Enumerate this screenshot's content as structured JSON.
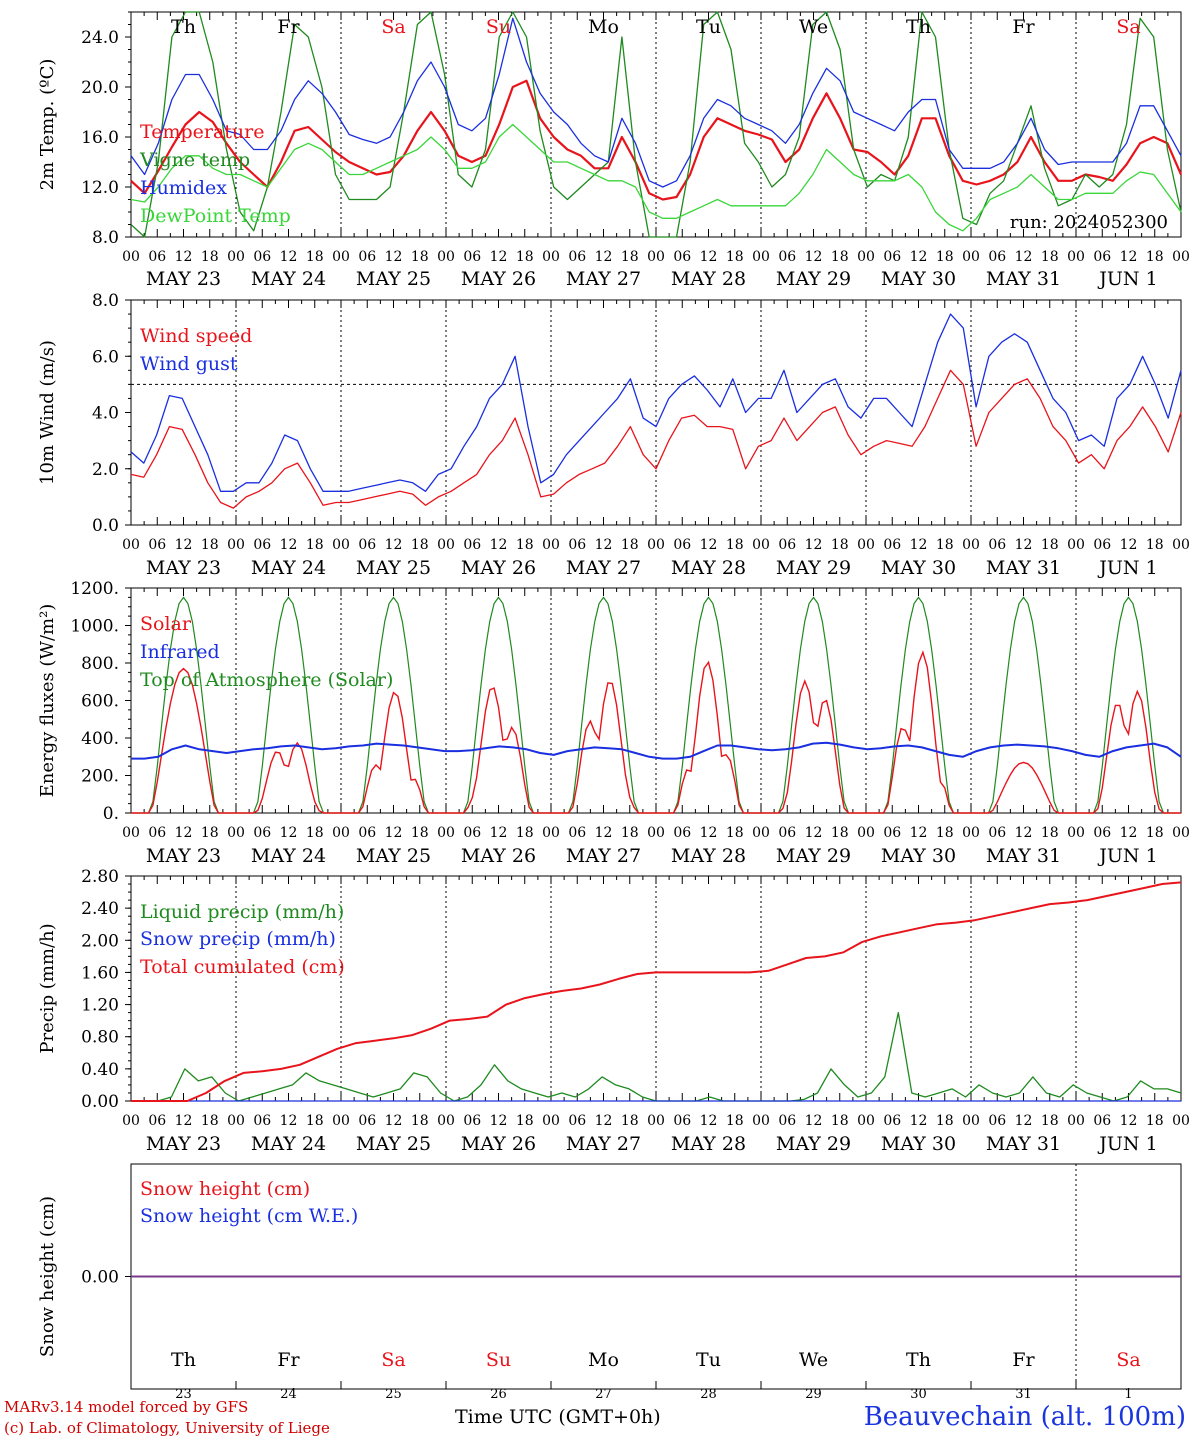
{
  "footer": {
    "model": "MARv3.14 model forced by GFS",
    "credit": "(c) Lab. of Climatology, University of Liege",
    "axis_title": "Time UTC (GMT+0h)",
    "station": "Beauvechain (alt. 100m)"
  },
  "colors": {
    "red": "#e8141c",
    "green": "#1f8a1f",
    "lightgreen": "#39d639",
    "blue": "#1a2fe0",
    "purple": "#7a3a8a"
  },
  "chart_data": [
    {
      "type": "line",
      "ylabel": "2m Temp. (ºC)",
      "ylim": [
        8,
        26
      ],
      "yticks": [
        "8.0",
        "12.0",
        "16.0",
        "20.0",
        "24.0"
      ],
      "ytick_values": [
        8,
        12,
        16,
        20,
        24
      ],
      "annotation": "run: 2024052300",
      "weekdays": [
        "Th",
        "Fr",
        "Sa",
        "Su",
        "Mo",
        "Tu",
        "We",
        "Th",
        "Fr",
        "Sa"
      ],
      "weekend_flags": [
        false,
        false,
        true,
        true,
        false,
        false,
        false,
        false,
        false,
        true
      ],
      "date_labels": [
        "MAY 23",
        "MAY 24",
        "MAY 25",
        "MAY 26",
        "MAY 27",
        "MAY 28",
        "MAY 29",
        "MAY 30",
        "MAY 31",
        "JUN  1"
      ],
      "hour_labels": [
        "00",
        "06",
        "12",
        "18"
      ],
      "series": [
        {
          "name": "Temperature",
          "color": "#e8141c",
          "values": [
            12.5,
            11.5,
            13.3,
            15.2,
            17.0,
            18.0,
            17.2,
            15.5,
            14.0,
            13.0,
            12.0,
            14.0,
            16.5,
            16.8,
            15.8,
            14.8,
            14.0,
            13.5,
            13.0,
            13.2,
            14.5,
            16.5,
            18.0,
            16.5,
            14.5,
            14.0,
            14.5,
            17.0,
            20.0,
            20.5,
            17.5,
            16.0,
            15.0,
            14.5,
            13.5,
            13.5,
            16.0,
            14.0,
            11.5,
            11.0,
            11.2,
            13.0,
            16.0,
            17.5,
            17.0,
            16.5,
            16.2,
            15.8,
            14.0,
            15.0,
            17.5,
            19.5,
            17.5,
            15.0,
            14.8,
            14.0,
            13.0,
            14.5,
            17.5,
            17.5,
            14.5,
            12.5,
            12.2,
            12.5,
            13.0,
            14.0,
            16.0,
            14.0,
            12.5,
            12.5,
            13.0,
            12.8,
            12.5,
            13.8,
            15.5,
            16.0,
            15.5,
            13.0
          ]
        },
        {
          "name": "Vigne temp",
          "color": "#1f8a1f",
          "values": [
            9.0,
            8.0,
            14.0,
            24.0,
            26.5,
            26.5,
            22.0,
            15.0,
            10.0,
            8.5,
            12.0,
            18.0,
            25.0,
            24.0,
            20.0,
            13.0,
            11.0,
            11.0,
            11.0,
            12.0,
            18.0,
            25.0,
            26.0,
            21.0,
            13.0,
            12.0,
            15.0,
            24.0,
            27.0,
            24.0,
            16.5,
            12.0,
            11.0,
            12.0,
            13.0,
            14.0,
            24.0,
            14.0,
            8.0,
            7.5,
            8.0,
            14.0,
            25.0,
            26.0,
            23.0,
            15.5,
            14.0,
            12.0,
            13.0,
            16.0,
            25.0,
            26.5,
            23.0,
            15.0,
            12.0,
            13.0,
            12.5,
            16.0,
            26.0,
            24.0,
            15.0,
            9.5,
            9.0,
            11.5,
            12.5,
            15.5,
            18.5,
            13.5,
            10.5,
            11.0,
            13.0,
            12.0,
            13.0,
            17.0,
            25.5,
            24.0,
            15.0,
            10.0
          ]
        },
        {
          "name": "Humidex",
          "color": "#1a2fe0",
          "values": [
            14.5,
            13.0,
            15.5,
            19.0,
            21.0,
            21.0,
            19.0,
            16.5,
            16.2,
            15.0,
            15.0,
            16.5,
            19.0,
            20.5,
            19.5,
            18.0,
            16.2,
            15.8,
            15.5,
            16.0,
            18.0,
            20.5,
            22.0,
            20.0,
            17.0,
            16.5,
            17.5,
            21.0,
            25.5,
            22.0,
            19.5,
            18.0,
            17.0,
            15.5,
            14.5,
            14.0,
            17.5,
            15.5,
            12.5,
            12.0,
            12.5,
            14.5,
            17.5,
            19.0,
            18.5,
            17.5,
            17.0,
            16.5,
            15.5,
            17.0,
            19.5,
            21.5,
            20.5,
            18.0,
            17.5,
            17.0,
            16.5,
            18.0,
            19.0,
            19.0,
            15.0,
            13.5,
            13.5,
            13.5,
            14.0,
            15.5,
            17.5,
            15.0,
            13.8,
            14.0,
            14.0,
            14.0,
            14.0,
            15.5,
            18.5,
            18.5,
            16.5,
            14.5
          ]
        },
        {
          "name": "DewPoint Temp",
          "color": "#39d639",
          "values": [
            11.0,
            10.8,
            12.0,
            13.5,
            14.5,
            14.5,
            13.5,
            13.0,
            13.0,
            12.5,
            12.0,
            13.5,
            15.0,
            15.5,
            15.0,
            14.0,
            13.0,
            13.0,
            13.5,
            14.0,
            14.5,
            15.0,
            16.0,
            15.0,
            13.5,
            13.5,
            14.0,
            16.0,
            17.0,
            16.0,
            15.0,
            14.0,
            14.0,
            13.5,
            13.0,
            12.5,
            12.5,
            12.0,
            10.0,
            9.5,
            9.5,
            10.0,
            10.5,
            11.0,
            10.5,
            10.5,
            10.5,
            10.5,
            10.5,
            11.5,
            13.0,
            15.0,
            14.0,
            13.0,
            12.5,
            12.5,
            12.5,
            13.0,
            12.0,
            10.0,
            9.0,
            8.5,
            9.5,
            11.0,
            11.5,
            12.0,
            13.0,
            12.0,
            11.0,
            11.0,
            11.5,
            11.5,
            11.5,
            12.5,
            13.2,
            13.0,
            11.5,
            10.0
          ]
        }
      ]
    },
    {
      "type": "line",
      "ylabel": "10m Wind (m/s)",
      "ylim": [
        0,
        8
      ],
      "yticks": [
        "0.0",
        "2.0",
        "4.0",
        "6.0",
        "8.0"
      ],
      "ytick_values": [
        0,
        2,
        4,
        6,
        8
      ],
      "reference_line": 5,
      "date_labels": [
        "MAY 23",
        "MAY 24",
        "MAY 25",
        "MAY 26",
        "MAY 27",
        "MAY 28",
        "MAY 29",
        "MAY 30",
        "MAY 31",
        "JUN  1"
      ],
      "hour_labels": [
        "00",
        "06",
        "12",
        "18"
      ],
      "series": [
        {
          "name": "Wind speed",
          "color": "#e8141c",
          "values": [
            1.8,
            1.7,
            2.5,
            3.5,
            3.4,
            2.5,
            1.5,
            0.8,
            0.6,
            1.0,
            1.2,
            1.5,
            2.0,
            2.2,
            1.5,
            0.7,
            0.8,
            0.8,
            0.9,
            1.0,
            1.1,
            1.2,
            1.1,
            0.7,
            1.0,
            1.2,
            1.5,
            1.8,
            2.5,
            3.0,
            3.8,
            2.5,
            1.0,
            1.1,
            1.5,
            1.8,
            2.0,
            2.2,
            2.8,
            3.5,
            2.5,
            2.0,
            3.0,
            3.8,
            3.9,
            3.5,
            3.5,
            3.4,
            2.0,
            2.8,
            3.0,
            3.8,
            3.0,
            3.5,
            4.0,
            4.2,
            3.2,
            2.5,
            2.8,
            3.0,
            2.9,
            2.8,
            3.5,
            4.5,
            5.5,
            5.0,
            2.8,
            4.0,
            4.5,
            5.0,
            5.2,
            4.5,
            3.5,
            3.0,
            2.2,
            2.5,
            2.0,
            3.0,
            3.5,
            4.2,
            3.5,
            2.6,
            4.0
          ]
        },
        {
          "name": "Wind gust",
          "color": "#1a2fe0",
          "values": [
            2.6,
            2.2,
            3.2,
            4.6,
            4.5,
            3.5,
            2.5,
            1.2,
            1.2,
            1.5,
            1.5,
            2.2,
            3.2,
            3.0,
            2.0,
            1.2,
            1.2,
            1.2,
            1.3,
            1.4,
            1.5,
            1.6,
            1.5,
            1.2,
            1.8,
            2.0,
            2.8,
            3.5,
            4.5,
            5.0,
            6.0,
            3.5,
            1.5,
            1.8,
            2.5,
            3.0,
            3.5,
            4.0,
            4.5,
            5.2,
            3.8,
            3.5,
            4.5,
            5.0,
            5.3,
            4.8,
            4.2,
            5.2,
            4.0,
            4.5,
            4.5,
            5.5,
            4.0,
            4.5,
            5.0,
            5.2,
            4.2,
            3.8,
            4.5,
            4.5,
            4.0,
            3.5,
            5.0,
            6.5,
            7.5,
            7.0,
            4.2,
            6.0,
            6.5,
            6.8,
            6.5,
            5.5,
            4.5,
            4.0,
            3.0,
            3.2,
            2.8,
            4.5,
            5.0,
            6.0,
            5.0,
            3.8,
            5.5
          ]
        }
      ]
    },
    {
      "type": "line",
      "ylabel": "Energy fluxes (W/m²)",
      "ylim": [
        0,
        1200
      ],
      "yticks": [
        "0.",
        "200.",
        "400.",
        "600.",
        "800.",
        "1000.",
        "1200."
      ],
      "ytick_values": [
        0,
        200,
        400,
        600,
        800,
        1000,
        1200
      ],
      "date_labels": [
        "MAY 23",
        "MAY 24",
        "MAY 25",
        "MAY 26",
        "MAY 27",
        "MAY 28",
        "MAY 29",
        "MAY 30",
        "MAY 31",
        "JUN  1"
      ],
      "hour_labels": [
        "00",
        "06",
        "12",
        "18"
      ],
      "series": [
        {
          "name": "Solar",
          "color": "#e8141c",
          "daily_peaks": [
            770,
            450,
            650,
            740,
            780,
            810,
            840,
            890,
            270,
            790
          ]
        },
        {
          "name": "Infrared",
          "color": "#1a2fe0",
          "values": [
            290,
            290,
            300,
            340,
            360,
            340,
            330,
            320,
            330,
            340,
            345,
            355,
            360,
            350,
            340,
            345,
            355,
            360,
            370,
            365,
            360,
            350,
            340,
            330,
            330,
            335,
            345,
            355,
            350,
            340,
            320,
            310,
            330,
            340,
            350,
            345,
            340,
            320,
            300,
            290,
            290,
            300,
            330,
            360,
            360,
            350,
            340,
            335,
            340,
            350,
            370,
            375,
            365,
            350,
            340,
            345,
            355,
            360,
            350,
            330,
            310,
            300,
            330,
            350,
            360,
            365,
            360,
            355,
            345,
            330,
            310,
            300,
            330,
            350,
            360,
            370,
            350,
            300
          ]
        },
        {
          "name": "Top of Atmosphere (Solar)",
          "color": "#1f8a1f",
          "daily_peak": 1150
        }
      ]
    },
    {
      "type": "line",
      "ylabel": "Precip (mm/h)",
      "ylim": [
        0,
        2.8
      ],
      "yticks": [
        "0.00",
        "0.40",
        "0.80",
        "1.20",
        "1.60",
        "2.00",
        "2.40",
        "2.80"
      ],
      "ytick_values": [
        0,
        0.4,
        0.8,
        1.2,
        1.6,
        2.0,
        2.4,
        2.8
      ],
      "date_labels": [
        "MAY 23",
        "MAY 24",
        "MAY 25",
        "MAY 26",
        "MAY 27",
        "MAY 28",
        "MAY 29",
        "MAY 30",
        "MAY 31",
        "JUN  1"
      ],
      "hour_labels": [
        "00",
        "06",
        "12",
        "18"
      ],
      "series": [
        {
          "name": "Liquid precip (mm/h)",
          "color": "#1f8a1f",
          "values": [
            0,
            0,
            0,
            0.05,
            0.4,
            0.25,
            0.3,
            0.1,
            0,
            0.05,
            0.1,
            0.15,
            0.2,
            0.35,
            0.25,
            0.2,
            0.15,
            0.1,
            0.05,
            0.1,
            0.15,
            0.35,
            0.3,
            0.1,
            0,
            0.05,
            0.2,
            0.45,
            0.25,
            0.15,
            0.1,
            0.05,
            0.1,
            0.05,
            0.15,
            0.3,
            0.2,
            0.15,
            0.05,
            0,
            0,
            0,
            0,
            0.05,
            0,
            0,
            0,
            0,
            0,
            0,
            0.02,
            0.1,
            0.4,
            0.2,
            0.05,
            0.1,
            0.3,
            1.1,
            0.1,
            0.05,
            0.1,
            0.15,
            0.05,
            0.2,
            0.1,
            0.05,
            0.1,
            0.3,
            0.1,
            0.05,
            0.2,
            0.1,
            0.05,
            0,
            0.05,
            0.25,
            0.15,
            0.15,
            0.1
          ]
        },
        {
          "name": "Snow precip (mm/h)",
          "color": "#1a2fe0",
          "values": [
            0,
            0
          ]
        },
        {
          "name": "Total cumulated (cm)",
          "color": "#e8141c",
          "values": [
            0,
            0,
            0,
            0,
            0.1,
            0.25,
            0.35,
            0.37,
            0.4,
            0.45,
            0.55,
            0.65,
            0.72,
            0.75,
            0.78,
            0.82,
            0.9,
            1.0,
            1.02,
            1.05,
            1.2,
            1.28,
            1.33,
            1.37,
            1.4,
            1.45,
            1.52,
            1.58,
            1.6,
            1.6,
            1.6,
            1.6,
            1.6,
            1.6,
            1.62,
            1.7,
            1.78,
            1.8,
            1.85,
            1.98,
            2.05,
            2.1,
            2.15,
            2.2,
            2.22,
            2.25,
            2.3,
            2.35,
            2.4,
            2.45,
            2.47,
            2.5,
            2.55,
            2.6,
            2.65,
            2.7,
            2.72
          ]
        }
      ]
    },
    {
      "type": "line",
      "ylabel": "Snow height (cm)",
      "ylim": [
        -1,
        1
      ],
      "yticks": [
        "0.00"
      ],
      "ytick_values": [
        0
      ],
      "weekdays": [
        "Th",
        "Fr",
        "Sa",
        "Su",
        "Mo",
        "Tu",
        "We",
        "Th",
        "Fr",
        "Sa"
      ],
      "weekend_flags": [
        false,
        false,
        true,
        true,
        false,
        false,
        false,
        false,
        false,
        true
      ],
      "day_numbers": [
        "23",
        "24",
        "25",
        "26",
        "27",
        "28",
        "29",
        "30",
        "31",
        "1"
      ],
      "series": [
        {
          "name": "Snow height (cm)",
          "color": "#e8141c",
          "values": [
            0,
            0
          ]
        },
        {
          "name": "Snow height (cm W.E.)",
          "color": "#1a2fe0",
          "values": [
            0,
            0
          ]
        }
      ]
    }
  ]
}
